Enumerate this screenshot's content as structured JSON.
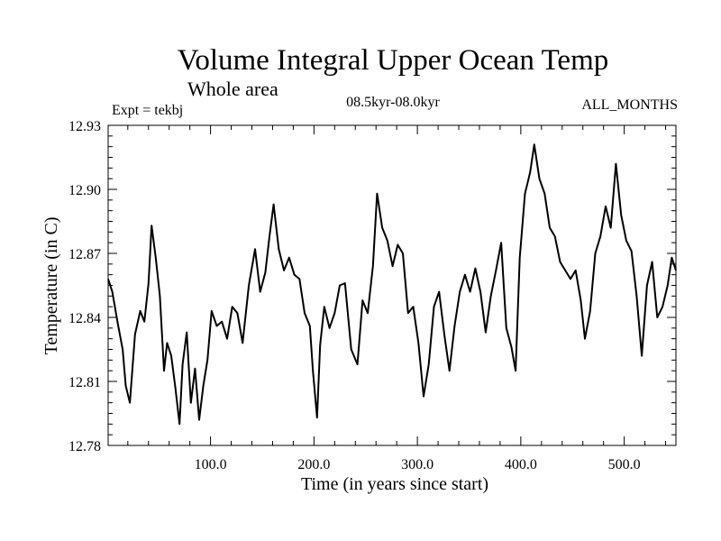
{
  "chart_data": {
    "type": "line",
    "title": "Volume Integral Upper Ocean Temp",
    "subtitle": "Whole area",
    "experiment_label": "Expt = tekbj",
    "period_label": "08.5kyr-08.0kyr",
    "months_label": "ALL_MONTHS",
    "xlabel": "Time (in years since start)",
    "ylabel": "Temperature (in C)",
    "xlim": [
      1,
      550
    ],
    "ylim": [
      12.78,
      12.93
    ],
    "x_ticks": [
      100,
      200,
      300,
      400,
      500
    ],
    "x_tick_labels": [
      "100.0",
      "200.0",
      "300.0",
      "400.0",
      "500.0"
    ],
    "y_ticks": [
      12.78,
      12.81,
      12.84,
      12.87,
      12.9,
      12.93
    ],
    "y_tick_labels": [
      "12.78",
      "12.81",
      "12.84",
      "12.87",
      "12.90",
      "12.93"
    ],
    "x_minor_step": 20,
    "y_minor_step": 0.005,
    "grid": false,
    "series": [
      {
        "name": "Volume Integral Upper Ocean Temp",
        "x": [
          1,
          5,
          10,
          15,
          18,
          22,
          27,
          32,
          36,
          40,
          43,
          47,
          51,
          55,
          58,
          62,
          66,
          70,
          73,
          77,
          81,
          85,
          89,
          93,
          97,
          101,
          106,
          111,
          116,
          121,
          126,
          131,
          137,
          143,
          148,
          153,
          157,
          161,
          166,
          171,
          176,
          181,
          186,
          191,
          196,
          199,
          203,
          206,
          210,
          215,
          220,
          225,
          230,
          236,
          242,
          247,
          252,
          257,
          261,
          266,
          271,
          276,
          281,
          286,
          291,
          296,
          301,
          306,
          311,
          316,
          321,
          326,
          331,
          336,
          341,
          346,
          351,
          356,
          361,
          366,
          371,
          376,
          381,
          386,
          391,
          395,
          399,
          404,
          409,
          413,
          418,
          423,
          428,
          433,
          438,
          443,
          448,
          453,
          458,
          462,
          467,
          472,
          477,
          482,
          487,
          492,
          497,
          502,
          507,
          512,
          517,
          522,
          527,
          532,
          537,
          542,
          546,
          550
        ],
        "values": [
          12.858,
          12.852,
          12.838,
          12.825,
          12.808,
          12.8,
          12.832,
          12.843,
          12.838,
          12.856,
          12.883,
          12.868,
          12.85,
          12.815,
          12.828,
          12.822,
          12.807,
          12.79,
          12.818,
          12.833,
          12.8,
          12.816,
          12.792,
          12.808,
          12.82,
          12.843,
          12.836,
          12.838,
          12.83,
          12.845,
          12.842,
          12.828,
          12.855,
          12.872,
          12.852,
          12.861,
          12.878,
          12.893,
          12.872,
          12.862,
          12.868,
          12.86,
          12.858,
          12.842,
          12.836,
          12.815,
          12.793,
          12.827,
          12.845,
          12.835,
          12.842,
          12.855,
          12.856,
          12.825,
          12.818,
          12.848,
          12.842,
          12.864,
          12.898,
          12.882,
          12.876,
          12.864,
          12.874,
          12.87,
          12.842,
          12.845,
          12.828,
          12.803,
          12.818,
          12.845,
          12.852,
          12.832,
          12.815,
          12.836,
          12.852,
          12.86,
          12.852,
          12.863,
          12.852,
          12.833,
          12.85,
          12.862,
          12.875,
          12.835,
          12.826,
          12.815,
          12.868,
          12.898,
          12.908,
          12.921,
          12.905,
          12.898,
          12.882,
          12.878,
          12.866,
          12.862,
          12.858,
          12.862,
          12.848,
          12.83,
          12.843,
          12.87,
          12.878,
          12.892,
          12.882,
          12.912,
          12.888,
          12.876,
          12.871,
          12.85,
          12.822,
          12.855,
          12.866,
          12.84,
          12.845,
          12.855,
          12.868,
          12.862
        ]
      }
    ]
  }
}
